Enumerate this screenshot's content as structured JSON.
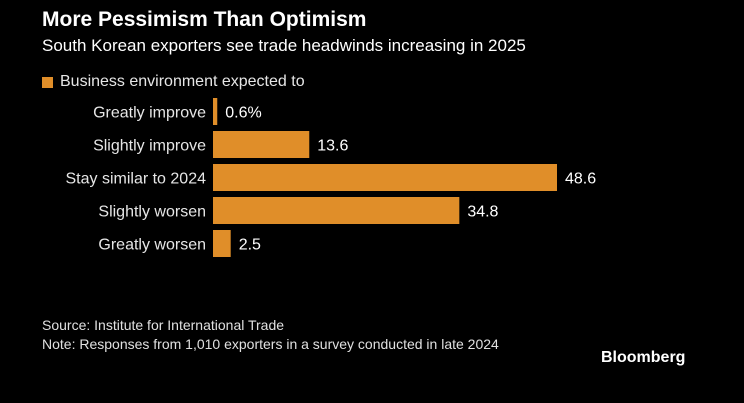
{
  "title": "More Pessimism Than Optimism",
  "subtitle": "South Korean exporters see trade headwinds increasing in 2025",
  "legend": {
    "label": "Business environment expected to",
    "color": "#e08e29"
  },
  "source": "Source: Institute for International Trade",
  "note": "Note: Responses from 1,010 exporters in a survey conducted in late 2024",
  "brand": "Bloomberg",
  "chart_data": {
    "type": "bar",
    "orientation": "horizontal",
    "title": "More Pessimism Than Optimism",
    "subtitle": "South Korean exporters see trade headwinds increasing in 2025",
    "categories": [
      "Greatly improve",
      "Slightly improve",
      "Stay similar to 2024",
      "Slightly worsen",
      "Greatly worsen"
    ],
    "series": [
      {
        "name": "Business environment expected to",
        "values": [
          0.6,
          13.6,
          48.6,
          34.8,
          2.5
        ],
        "labels": [
          "0.6%",
          "13.6",
          "48.6",
          "34.8",
          "2.5"
        ]
      }
    ],
    "xlim": [
      0,
      48.6
    ],
    "grid": false,
    "legend_position": "top-left",
    "bar_color": "#e08e29"
  }
}
